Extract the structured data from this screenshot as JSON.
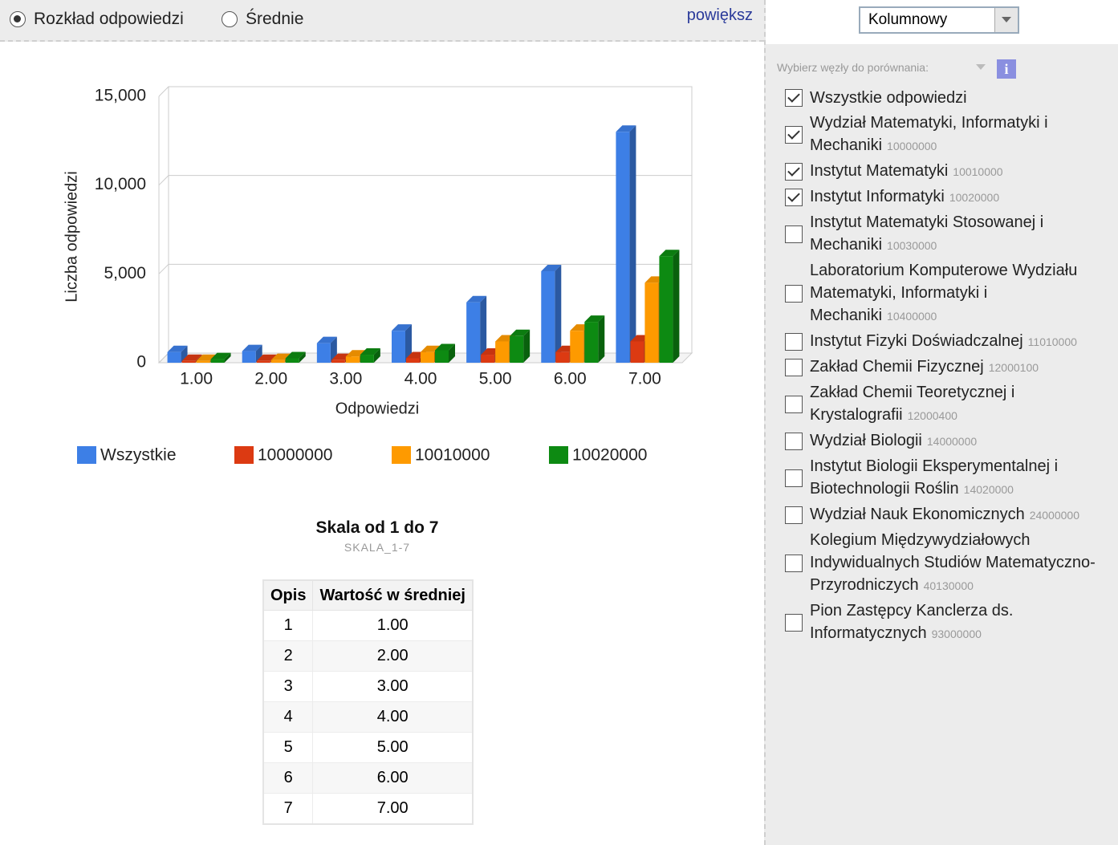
{
  "toolbar": {
    "radios": [
      {
        "label": "Rozkład odpowiedzi",
        "selected": true
      },
      {
        "label": "Średnie",
        "selected": false
      }
    ],
    "link": "powiększ"
  },
  "chart_data": {
    "type": "bar",
    "x_label": "Odpowiedzi",
    "y_label": "Liczba odpowiedzi",
    "categories": [
      "1.00",
      "2.00",
      "3.00",
      "4.00",
      "5.00",
      "6.00",
      "7.00"
    ],
    "series": [
      {
        "name": "Wszystkie",
        "color": "#3d7fe6",
        "values": [
          600,
          650,
          1100,
          1800,
          3400,
          5150,
          13000
        ]
      },
      {
        "name": "10000000",
        "color": "#dc3a12",
        "values": [
          100,
          100,
          150,
          250,
          450,
          600,
          1200
        ]
      },
      {
        "name": "10010000",
        "color": "#fe9a00",
        "values": [
          100,
          150,
          350,
          600,
          1200,
          1800,
          4500
        ]
      },
      {
        "name": "10020000",
        "color": "#0d8a12",
        "values": [
          200,
          250,
          450,
          700,
          1500,
          2300,
          6000
        ]
      }
    ],
    "ylim": [
      0,
      15000
    ],
    "yticks": [
      0,
      {
        "value": 5000,
        "label": "5,000"
      },
      {
        "value": 10000,
        "label": "10,000"
      },
      {
        "value": 15000,
        "label": "15,000"
      }
    ],
    "grid": true,
    "legend": "bottom"
  },
  "scale": {
    "title": "Skala od 1 do 7",
    "code": "SKALA_1-7",
    "table": {
      "headers": [
        "Opis",
        "Wartość w średniej"
      ],
      "rows": [
        [
          "1",
          "1.00"
        ],
        [
          "2",
          "2.00"
        ],
        [
          "3",
          "3.00"
        ],
        [
          "4",
          "4.00"
        ],
        [
          "5",
          "5.00"
        ],
        [
          "6",
          "6.00"
        ],
        [
          "7",
          "7.00"
        ]
      ]
    }
  },
  "sidebar": {
    "dropdown": "Kolumnowy",
    "prompt": "Wybierz węzły do porównania:",
    "nodes": [
      {
        "label": "Wszystkie odpowiedzi",
        "code": null,
        "checked": true
      },
      {
        "label": "Wydział Matematyki, Informatyki i Mechaniki",
        "code": "10000000",
        "checked": true
      },
      {
        "label": "Instytut Matematyki",
        "code": "10010000",
        "checked": true
      },
      {
        "label": "Instytut Informatyki",
        "code": "10020000",
        "checked": true
      },
      {
        "label": "Instytut Matematyki Stosowanej i Mechaniki",
        "code": "10030000",
        "checked": false
      },
      {
        "label": "Laboratorium Komputerowe Wydziału Matematyki, Informatyki i Mechaniki",
        "code": "10400000",
        "checked": false
      },
      {
        "label": "Instytut Fizyki Doświadczalnej",
        "code": "11010000",
        "checked": false
      },
      {
        "label": "Zakład Chemii Fizycznej",
        "code": "12000100",
        "checked": false
      },
      {
        "label": "Zakład Chemii Teoretycznej i Krystalografii",
        "code": "12000400",
        "checked": false
      },
      {
        "label": "Wydział Biologii",
        "code": "14000000",
        "checked": false
      },
      {
        "label": "Instytut Biologii Eksperymentalnej i Biotechnologii Roślin",
        "code": "14020000",
        "checked": false
      },
      {
        "label": "Wydział Nauk Ekonomicznych",
        "code": "24000000",
        "checked": false
      },
      {
        "label": "Kolegium Międzywydziałowych Indywidualnych Studiów Matematyczno-Przyrodniczych",
        "code": "40130000",
        "checked": false
      },
      {
        "label": "Pion Zastępcy Kanclerza ds. Informatycznych",
        "code": "93000000",
        "checked": false
      }
    ]
  }
}
